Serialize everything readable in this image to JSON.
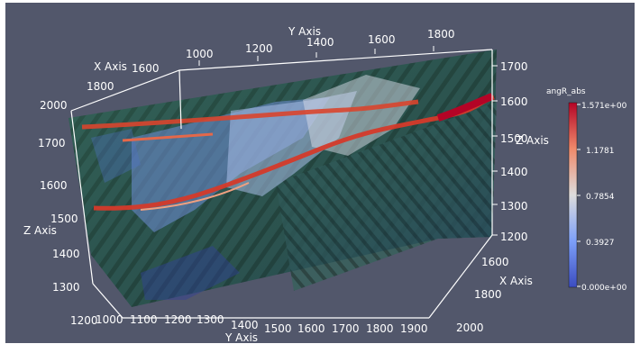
{
  "viewer": {
    "background_color": "#52576b",
    "axis_color": "#ffffff"
  },
  "axes": {
    "top_y_axis_title": "Y Axis",
    "top_y_ticks": [
      "1000",
      "1200",
      "1400",
      "1600",
      "1800"
    ],
    "top_x_axis_title": "X Axis",
    "top_x_ticks": [
      "1600",
      "1800",
      "2000"
    ],
    "left_z_axis_title": "Z Axis",
    "left_z_ticks": [
      "1700",
      "1600",
      "1500",
      "1400",
      "1300"
    ],
    "left_corner_label": "1200",
    "right_z_ticks": [
      "1700",
      "1600",
      "1500",
      "1400",
      "1300",
      "1200"
    ],
    "right_z_axis_title": "Z Axis",
    "right_x_axis_title": "X Axis",
    "right_x_ticks": [
      "1600",
      "1800",
      "2000"
    ],
    "bottom_y_ticks": [
      "1000",
      "1100",
      "1200",
      "1300",
      "1400",
      "1500",
      "1600",
      "1700",
      "1800",
      "1900"
    ],
    "bottom_y_axis_title": "Y Axis"
  },
  "colorbar": {
    "title": "angR_abs",
    "labels": [
      "1.571e+00",
      "1.1781",
      "0.7854",
      "0.3927",
      "0.000e+00"
    ],
    "colors": [
      "#b40426",
      "#f08a6b",
      "#dddcdc",
      "#7da0f9",
      "#3b4cc0"
    ]
  }
}
